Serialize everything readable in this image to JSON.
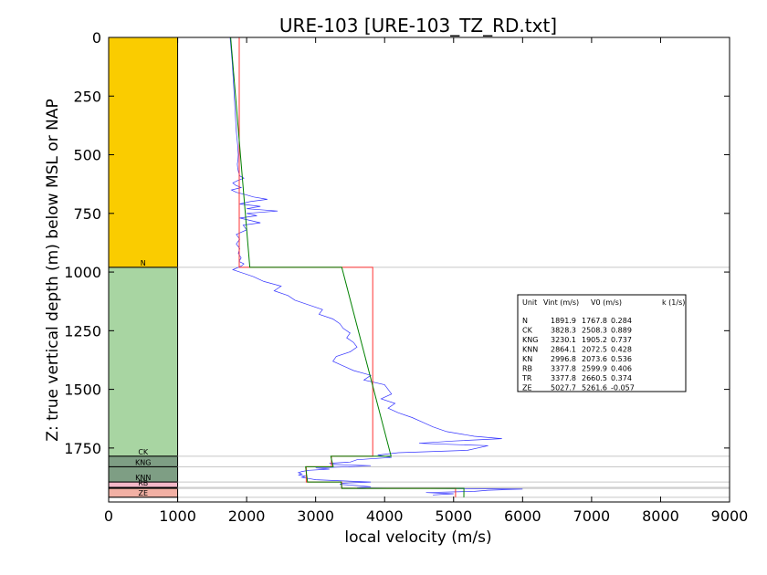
{
  "chart_data": {
    "type": "line",
    "title": "URE-103 [URE-103_TZ_RD.txt]",
    "xlabel": "local velocity (m/s)",
    "ylabel": "Z: true vertical depth (m) below MSL or NAP",
    "xlim": [
      0,
      9000
    ],
    "ylim": [
      1980,
      0
    ],
    "y_inverted": true,
    "grid": false,
    "xticks": [
      0,
      1000,
      2000,
      3000,
      4000,
      5000,
      6000,
      7000,
      8000,
      9000
    ],
    "yticks": [
      0,
      250,
      500,
      750,
      1000,
      1250,
      1500,
      1750
    ],
    "colors": {
      "N": "#FACC00",
      "CK": "#A8D5A2",
      "KNG": "#7E9E84",
      "KNN": "#7E9E84",
      "RB": "#F4B8C8",
      "TR": "#F2D0C4",
      "ZE": "#F2B0A4",
      "measured": "#3333ff",
      "interval": "#ff3333",
      "linear_fit": "#008000",
      "boundary": "#c8c8c8"
    },
    "units": [
      {
        "name": "N",
        "top": 0,
        "base": 980,
        "label": "N"
      },
      {
        "name": "CK",
        "top": 980,
        "base": 1785,
        "label": "CK"
      },
      {
        "name": "KNG",
        "top": 1785,
        "base": 1830,
        "label": "KNG"
      },
      {
        "name": "KNN",
        "top": 1830,
        "base": 1895,
        "label": "KNN"
      },
      {
        "name": "RB",
        "top": 1895,
        "base": 1918,
        "label": "RB"
      },
      {
        "name": "TR",
        "top": 1918,
        "base": 1922,
        "label": ""
      },
      {
        "name": "ZE",
        "top": 1922,
        "base": 1960,
        "label": "ZE"
      },
      {
        "name": "below",
        "top": 1960,
        "base": 1980,
        "label": ""
      }
    ],
    "legend": {
      "position": "right",
      "header": {
        "unit": "Unit",
        "vint": "Vint (m/s)",
        "v0": "V0 (m/s)",
        "k": "k (1/s)"
      },
      "rows": [
        {
          "unit": "N",
          "vint": "1891.9",
          "v0": "1767.8",
          "k": "0.284"
        },
        {
          "unit": "CK",
          "vint": "3828.3",
          "v0": "2508.3",
          "k": "0.889"
        },
        {
          "unit": "KNG",
          "vint": "3230.1",
          "v0": "1905.2",
          "k": "0.737"
        },
        {
          "unit": "KNN",
          "vint": "2864.1",
          "v0": "2072.5",
          "k": "0.428"
        },
        {
          "unit": "KN",
          "vint": "2996.8",
          "v0": "2073.6",
          "k": "0.536"
        },
        {
          "unit": "RB",
          "vint": "3377.8",
          "v0": "2599.9",
          "k": "0.406"
        },
        {
          "unit": "TR",
          "vint": "3377.8",
          "v0": "2660.5",
          "k": "0.374"
        },
        {
          "unit": "ZE",
          "vint": "5027.7",
          "v0": "5261.6",
          "k": "-0.057"
        }
      ]
    },
    "series": [
      {
        "key": "measured",
        "x": [
          1760,
          1790,
          1810,
          1830,
          1850,
          1870,
          1880,
          1875,
          1865,
          1870,
          1880,
          1890,
          1900,
          1960,
          1870,
          1800,
          1840,
          1920,
          1780,
          1850,
          1980,
          2100,
          2300,
          2050,
          1900,
          2200,
          2000,
          2450,
          2000,
          2150,
          1900,
          2050,
          2200,
          1950,
          2000,
          1850,
          1900,
          1850,
          1900,
          1880,
          1920,
          1890,
          1960,
          1920,
          1800,
          1900,
          2000,
          2100,
          2250,
          2500,
          2400,
          2600,
          2700,
          2900,
          3100,
          3050,
          3250,
          3350,
          3400,
          3500,
          3450,
          3550,
          3600,
          3500,
          3300,
          3250,
          3400,
          3550,
          3800,
          3700,
          4000,
          4050,
          4100,
          3950,
          4150,
          4050,
          4200,
          4400,
          4550,
          4700,
          4900,
          5300,
          5700,
          5000,
          4500,
          5500,
          5200,
          4200,
          3900,
          4100,
          3600,
          3500,
          3200,
          3250,
          3800,
          3500,
          3000,
          3200,
          2900,
          2800,
          2750,
          2800,
          2750,
          2850,
          2800,
          2900,
          3000,
          3400,
          3800,
          3400,
          3350,
          3600,
          3800,
          3600,
          6000,
          5500,
          5300,
          4600,
          5000,
          4700
        ],
        "y": [
          0,
          100,
          200,
          300,
          400,
          460,
          500,
          520,
          540,
          555,
          570,
          580,
          590,
          600,
          610,
          620,
          630,
          640,
          650,
          660,
          670,
          680,
          690,
          700,
          710,
          720,
          730,
          740,
          750,
          760,
          770,
          780,
          790,
          800,
          820,
          840,
          860,
          880,
          900,
          920,
          940,
          955,
          965,
          975,
          990,
          1000,
          1010,
          1020,
          1040,
          1060,
          1080,
          1100,
          1120,
          1140,
          1160,
          1180,
          1200,
          1220,
          1240,
          1260,
          1280,
          1300,
          1320,
          1340,
          1360,
          1380,
          1400,
          1420,
          1440,
          1460,
          1480,
          1500,
          1520,
          1540,
          1560,
          1580,
          1600,
          1620,
          1640,
          1660,
          1680,
          1700,
          1710,
          1720,
          1730,
          1740,
          1760,
          1770,
          1780,
          1790,
          1800,
          1810,
          1815,
          1820,
          1825,
          1830,
          1835,
          1840,
          1845,
          1850,
          1855,
          1860,
          1865,
          1870,
          1875,
          1880,
          1885,
          1890,
          1895,
          1900,
          1905,
          1910,
          1915,
          1920,
          1925,
          1930,
          1935,
          1940,
          1945,
          1950
        ]
      },
      {
        "key": "interval",
        "x": [
          1892,
          1892,
          3828,
          3828,
          3230,
          3230,
          2864,
          2864,
          3378,
          3378,
          5028,
          5028
        ],
        "y": [
          0,
          980,
          980,
          1785,
          1785,
          1830,
          1830,
          1895,
          1895,
          1922,
          1922,
          1960
        ]
      },
      {
        "key": "linear_fit",
        "x": [
          1768,
          2046,
          3379,
          4094,
          3220,
          3254,
          2855,
          2883,
          3370,
          3380,
          5150,
          5148
        ],
        "y": [
          0,
          980,
          980,
          1785,
          1785,
          1830,
          1830,
          1895,
          1895,
          1922,
          1922,
          1960
        ]
      }
    ]
  }
}
